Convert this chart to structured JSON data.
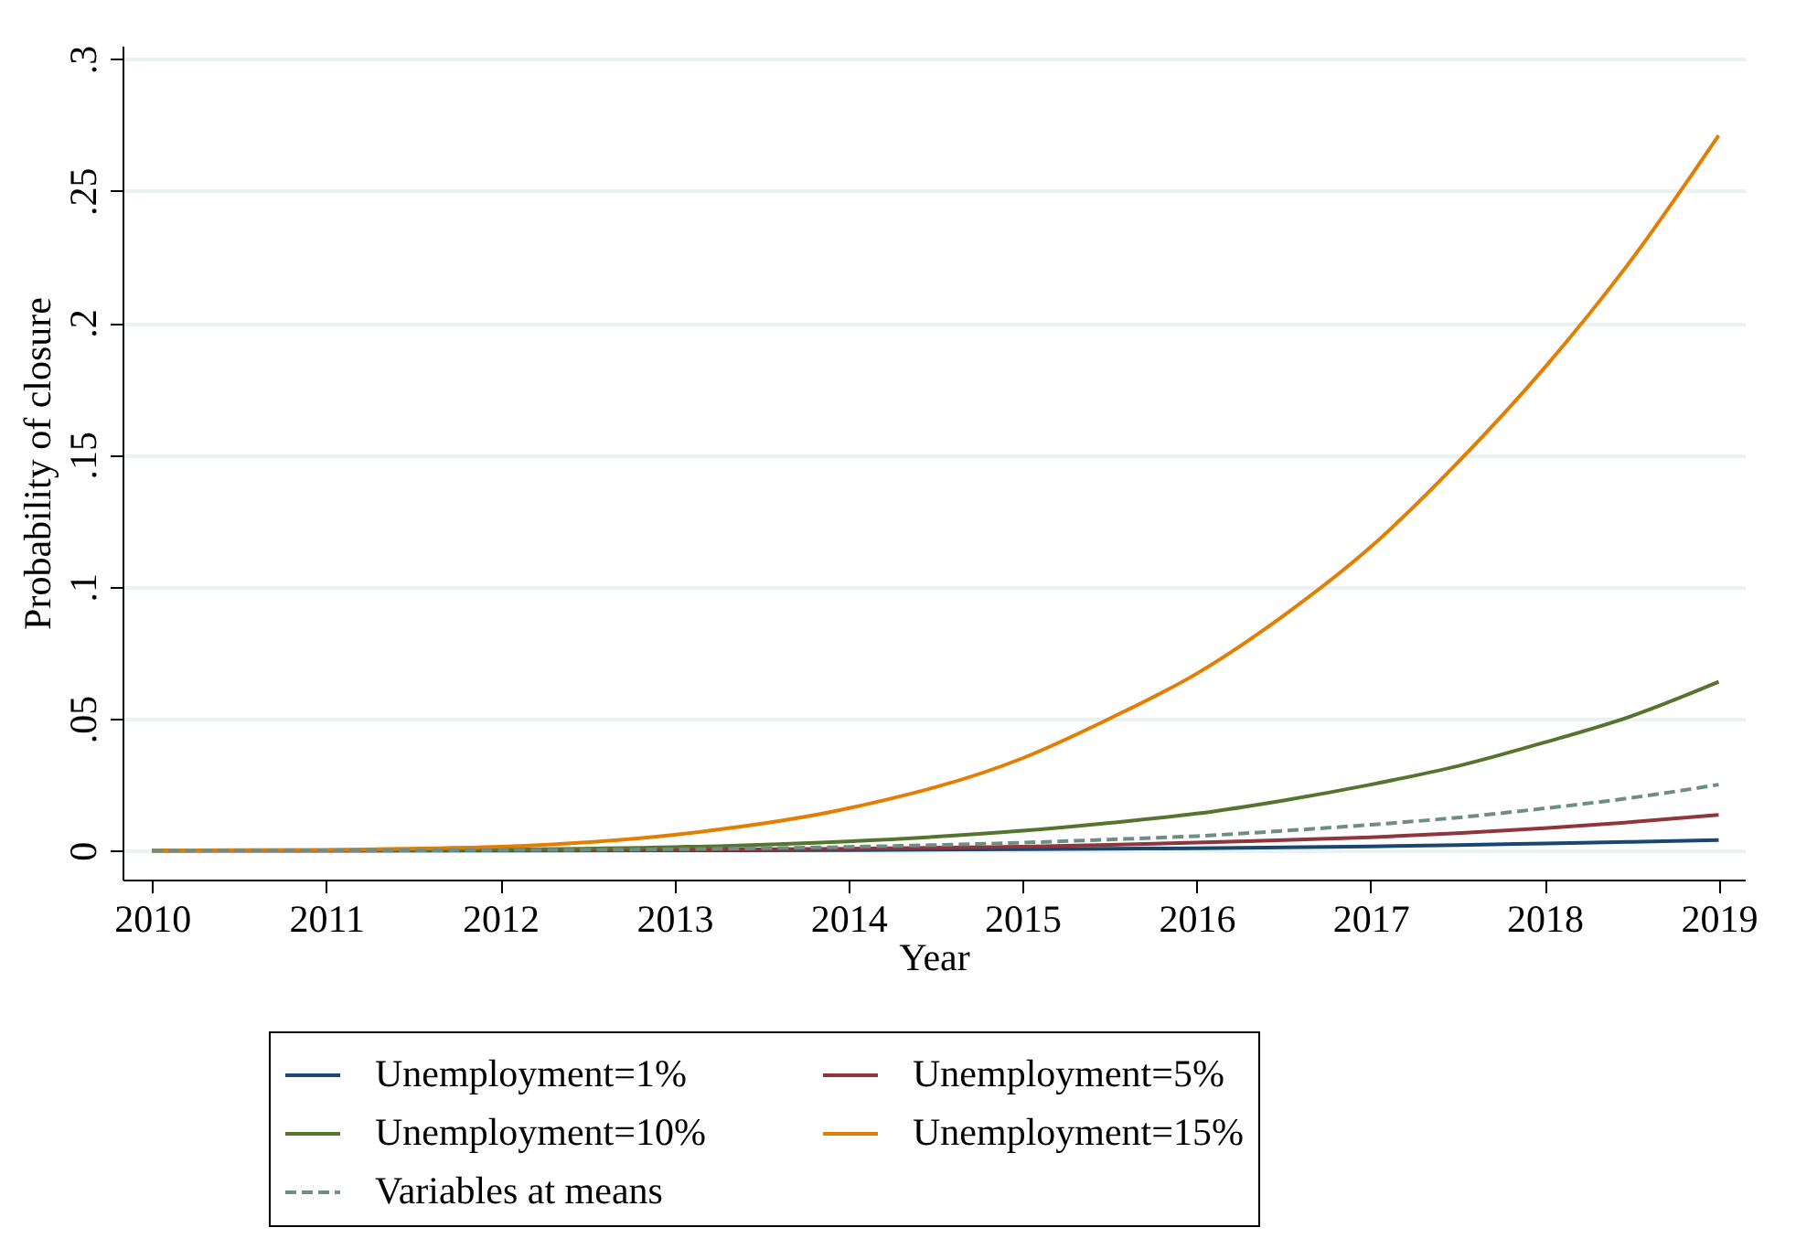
{
  "chart_data": {
    "type": "line",
    "xlabel": "Year",
    "ylabel": "Probability of closure",
    "x": [
      2010,
      2011,
      2012,
      2013,
      2014,
      2015,
      2015.5,
      2016,
      2016.5,
      2017,
      2017.5,
      2018,
      2018.5,
      2019
    ],
    "series": [
      {
        "name": "Unemployment=1%",
        "color": "#1a476f",
        "values": [
          0,
          0,
          0,
          0.0001,
          0.0002,
          0.0005,
          0.0007,
          0.0009,
          0.0012,
          0.0016,
          0.0021,
          0.0027,
          0.0033,
          0.004
        ]
      },
      {
        "name": "Unemployment=5%",
        "color": "#90353b",
        "values": [
          0,
          0,
          0.0001,
          0.0003,
          0.0007,
          0.0015,
          0.0022,
          0.003,
          0.004,
          0.005,
          0.0066,
          0.0085,
          0.0108,
          0.0135
        ]
      },
      {
        "name": "Unemployment=10%",
        "color": "#55752f",
        "values": [
          0,
          0.0001,
          0.0004,
          0.0013,
          0.0035,
          0.0075,
          0.0105,
          0.014,
          0.019,
          0.025,
          0.032,
          0.041,
          0.051,
          0.064
        ]
      },
      {
        "name": "Unemployment=15%",
        "color": "#e37e00",
        "values": [
          0,
          0.0003,
          0.0015,
          0.006,
          0.016,
          0.035,
          0.05,
          0.067,
          0.089,
          0.115,
          0.147,
          0.183,
          0.224,
          0.271
        ]
      },
      {
        "name": "Variables at means",
        "color": "#6e8e84",
        "line_style": "dashed",
        "values": [
          0,
          0,
          0.0002,
          0.0005,
          0.0014,
          0.003,
          0.0042,
          0.0055,
          0.0075,
          0.0098,
          0.0125,
          0.016,
          0.02,
          0.025
        ]
      }
    ],
    "xlim": [
      2009.83,
      2019.15
    ],
    "xticks": [
      2010,
      2011,
      2012,
      2013,
      2014,
      2015,
      2016,
      2017,
      2018,
      2019
    ],
    "ylim": [
      -0.011,
      0.305
    ],
    "yticks": [
      {
        "value": 0,
        "label": "0"
      },
      {
        "value": 0.05,
        "label": ".05"
      },
      {
        "value": 0.1,
        "label": ".1"
      },
      {
        "value": 0.15,
        "label": ".15"
      },
      {
        "value": 0.2,
        "label": ".2"
      },
      {
        "value": 0.25,
        "label": ".25"
      },
      {
        "value": 0.3,
        "label": ".3"
      }
    ],
    "grid": "y",
    "legend": "bottom",
    "line_style": "solid"
  }
}
